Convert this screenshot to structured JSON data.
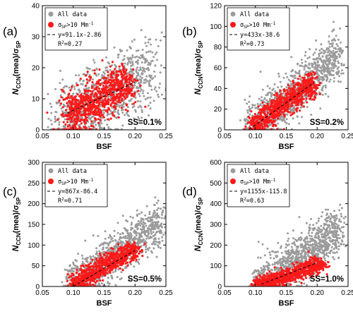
{
  "chart_data": [
    {
      "panel": "(a)",
      "type": "scatter",
      "xlabel": "BSF",
      "ylabel": "N_CCN(mea)/σ_SP",
      "ylabel_main": "N",
      "ylabel_sub1": "CCN",
      "ylabel_mid": "(mea)/σ",
      "ylabel_sub2": "SP",
      "xlim": [
        0.05,
        0.25
      ],
      "ylim": [
        0,
        40
      ],
      "xticks": [
        "0.05",
        "0.10",
        "0.15",
        "0.20",
        "0.25"
      ],
      "yticks": [
        "0",
        "10",
        "20",
        "30",
        "40"
      ],
      "ss_label": "SS=0.1%",
      "legend": {
        "all": "All data",
        "sel_a": "σ",
        "sel_sub": "SP",
        "sel_b": ">10 Mm",
        "sel_sup": "-1",
        "fit": "y=91.1x-2.86",
        "r2_a": "R",
        "r2_sup": "2",
        "r2_b": "=0.27"
      },
      "fit": {
        "slope": 91.1,
        "intercept": -2.86,
        "x_range": [
          0.09,
          0.2
        ]
      },
      "colors": {
        "all": "#9b9b9b",
        "sel": "#ff1a1a"
      },
      "series": [
        {
          "name": "All data",
          "centers": [
            [
              0.088,
              4
            ],
            [
              0.095,
              2
            ],
            [
              0.105,
              4
            ],
            [
              0.118,
              6
            ],
            [
              0.13,
              7
            ],
            [
              0.145,
              9
            ],
            [
              0.16,
              11
            ],
            [
              0.175,
              13
            ],
            [
              0.19,
              15
            ],
            [
              0.205,
              17
            ],
            [
              0.22,
              19
            ]
          ],
          "spread": [
            0.02,
            6
          ],
          "n": 1000
        },
        {
          "name": "σSP>10 Mm-1",
          "centers": [
            [
              0.1,
              5
            ],
            [
              0.11,
              6
            ],
            [
              0.125,
              8
            ],
            [
              0.14,
              10
            ],
            [
              0.155,
              11.5
            ],
            [
              0.17,
              13
            ],
            [
              0.185,
              15
            ]
          ],
          "spread": [
            0.016,
            3.5
          ],
          "n": 800
        }
      ]
    },
    {
      "panel": "(b)",
      "type": "scatter",
      "xlabel": "BSF",
      "ylabel": "N_CCN(mea)/σ_SP",
      "ylabel_main": "N",
      "ylabel_sub1": "CCN",
      "ylabel_mid": "(mea)/σ",
      "ylabel_sub2": "SP",
      "xlim": [
        0.05,
        0.25
      ],
      "ylim": [
        0,
        120
      ],
      "xticks": [
        "0.05",
        "0.10",
        "0.15",
        "0.20",
        "0.25"
      ],
      "yticks": [
        "0",
        "20",
        "40",
        "60",
        "80",
        "100",
        "120"
      ],
      "ss_label": "SS=0.2%",
      "legend": {
        "all": "All data",
        "sel_a": "σ",
        "sel_sub": "SP",
        "sel_b": ">10 Mm",
        "sel_sup": "-1",
        "fit": "y=433x-38.6",
        "r2_a": "R",
        "r2_sup": "2",
        "r2_b": "=0.73"
      },
      "fit": {
        "slope": 433,
        "intercept": -38.6,
        "x_range": [
          0.09,
          0.195
        ]
      },
      "colors": {
        "all": "#9b9b9b",
        "sel": "#ff1a1a"
      },
      "series": [
        {
          "name": "All data",
          "centers": [
            [
              0.095,
              5
            ],
            [
              0.11,
              10
            ],
            [
              0.125,
              17
            ],
            [
              0.14,
              24
            ],
            [
              0.155,
              31
            ],
            [
              0.17,
              40
            ],
            [
              0.185,
              48
            ],
            [
              0.2,
              55
            ],
            [
              0.215,
              62
            ],
            [
              0.23,
              68
            ]
          ],
          "spread": [
            0.012,
            11
          ],
          "n": 1100
        },
        {
          "name": "σSP>10 Mm-1",
          "centers": [
            [
              0.1,
              5
            ],
            [
              0.115,
              11
            ],
            [
              0.13,
              18
            ],
            [
              0.145,
              24
            ],
            [
              0.16,
              31
            ],
            [
              0.175,
              37
            ],
            [
              0.19,
              43
            ]
          ],
          "spread": [
            0.009,
            6
          ],
          "n": 800
        }
      ]
    },
    {
      "panel": "(c)",
      "type": "scatter",
      "xlabel": "BSF",
      "ylabel": "N_CCN(mea)/σ_SP",
      "ylabel_main": "N",
      "ylabel_sub1": "CCN",
      "ylabel_mid": "(mea)/σ",
      "ylabel_sub2": "SP",
      "xlim": [
        0.05,
        0.25
      ],
      "ylim": [
        0,
        300
      ],
      "xticks": [
        "0.05",
        "0.10",
        "0.15",
        "0.20",
        "0.25"
      ],
      "yticks": [
        "0",
        "50",
        "100",
        "150",
        "200",
        "250",
        "300"
      ],
      "ss_label": "SS=0.5%",
      "legend": {
        "all": "All data",
        "sel_a": "σ",
        "sel_sub": "SP",
        "sel_b": ">10 Mm",
        "sel_sup": "-1",
        "fit": "y=867x-86.4",
        "r2_a": "R",
        "r2_sup": "2",
        "r2_b": "=0.71"
      },
      "fit": {
        "slope": 867,
        "intercept": -86.4,
        "x_range": [
          0.1,
          0.2
        ]
      },
      "colors": {
        "all": "#9b9b9b",
        "sel": "#ff1a1a"
      },
      "series": [
        {
          "name": "All data",
          "centers": [
            [
              0.1,
              8
            ],
            [
              0.115,
              20
            ],
            [
              0.13,
              35
            ],
            [
              0.145,
              52
            ],
            [
              0.16,
              68
            ],
            [
              0.175,
              85
            ],
            [
              0.19,
              100
            ],
            [
              0.205,
              118
            ],
            [
              0.22,
              132
            ],
            [
              0.235,
              145
            ]
          ],
          "spread": [
            0.012,
            25
          ],
          "n": 1100
        },
        {
          "name": "σSP>10 Mm-1",
          "centers": [
            [
              0.105,
              10
            ],
            [
              0.12,
              22
            ],
            [
              0.135,
              36
            ],
            [
              0.15,
              50
            ],
            [
              0.165,
              62
            ],
            [
              0.18,
              74
            ],
            [
              0.195,
              88
            ]
          ],
          "spread": [
            0.009,
            12
          ],
          "n": 700
        }
      ]
    },
    {
      "panel": "(d)",
      "type": "scatter",
      "xlabel": "BSF",
      "ylabel": "N_CCN(mea)/σ_SP",
      "ylabel_main": "N",
      "ylabel_sub1": "CCN",
      "ylabel_mid": "(mea)/σ",
      "ylabel_sub2": "SP",
      "xlim": [
        0.05,
        0.25
      ],
      "ylim": [
        0,
        600
      ],
      "xticks": [
        "0.05",
        "0.10",
        "0.15",
        "0.20",
        "0.25"
      ],
      "yticks": [
        "0",
        "100",
        "200",
        "300",
        "400",
        "500",
        "600"
      ],
      "ss_label": "SS=1.0%",
      "legend": {
        "all": "All data",
        "sel_a": "σ",
        "sel_sub": "SP",
        "sel_b": ">10 Mm",
        "sel_sup": "-1",
        "fit": "y=1155x-115.8",
        "r2_a": "R",
        "r2_sup": "2",
        "r2_b": "=0.63"
      },
      "fit": {
        "slope": 1155,
        "intercept": -115.8,
        "x_range": [
          0.11,
          0.2
        ]
      },
      "colors": {
        "all": "#9b9b9b",
        "sel": "#ff1a1a"
      },
      "series": [
        {
          "name": "All data",
          "centers": [
            [
              0.11,
              15
            ],
            [
              0.125,
              40
            ],
            [
              0.14,
              70
            ],
            [
              0.155,
              100
            ],
            [
              0.17,
              130
            ],
            [
              0.185,
              165
            ],
            [
              0.2,
              200
            ],
            [
              0.215,
              235
            ],
            [
              0.23,
              265
            ]
          ],
          "spread": [
            0.012,
            55
          ],
          "n": 1100
        },
        {
          "name": "σSP>10 Mm-1",
          "centers": [
            [
              0.11,
              12
            ],
            [
              0.125,
              25
            ],
            [
              0.14,
              40
            ],
            [
              0.155,
              55
            ],
            [
              0.17,
              72
            ],
            [
              0.185,
              88
            ],
            [
              0.2,
              105
            ]
          ],
          "spread": [
            0.01,
            18
          ],
          "n": 800
        }
      ]
    }
  ]
}
